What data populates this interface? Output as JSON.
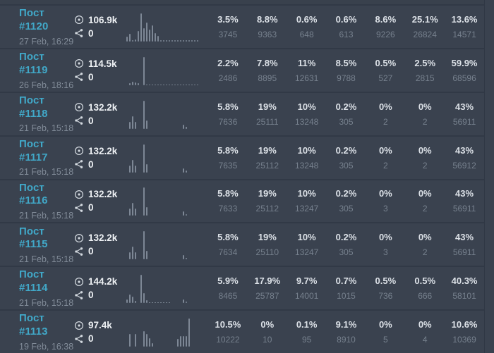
{
  "colors": {
    "background": "#3a424f",
    "divider": "#313946",
    "post_link": "#41a8c8",
    "primary_text": "#eef1f4",
    "muted_text": "#828c99",
    "stat_value_text": "#76808d",
    "spark_bar": "#7d8795"
  },
  "icons": {
    "views": "eye-icon",
    "shares": "share-icon"
  },
  "rows": [
    {
      "title": "Пост #1120",
      "date": "27 Feb, 16:29",
      "views": "106.9k",
      "shares": "0",
      "spark": [
        18,
        28,
        5,
        8,
        38,
        100,
        48,
        68,
        42,
        58,
        30,
        20,
        5,
        5,
        5,
        5,
        5,
        5,
        5,
        5,
        5,
        5,
        5,
        5,
        5,
        5
      ],
      "stats": [
        {
          "pct": "3.5%",
          "val": "3745"
        },
        {
          "pct": "8.8%",
          "val": "9363"
        },
        {
          "pct": "0.6%",
          "val": "648"
        },
        {
          "pct": "0.6%",
          "val": "613"
        },
        {
          "pct": "8.6%",
          "val": "9226"
        },
        {
          "pct": "25.1%",
          "val": "26824"
        },
        {
          "pct": "13.6%",
          "val": "14571"
        }
      ]
    },
    {
      "title": "Пост #1119",
      "date": "26 Feb, 18:16",
      "views": "114.5k",
      "shares": "0",
      "spark": [
        0,
        8,
        12,
        10,
        8,
        0,
        100,
        3,
        3,
        3,
        3,
        3,
        3,
        3,
        3,
        3,
        3,
        3,
        3,
        3,
        3,
        3,
        3,
        3,
        3,
        3
      ],
      "stats": [
        {
          "pct": "2.2%",
          "val": "2486"
        },
        {
          "pct": "7.8%",
          "val": "8895"
        },
        {
          "pct": "11%",
          "val": "12631"
        },
        {
          "pct": "8.5%",
          "val": "9788"
        },
        {
          "pct": "0.5%",
          "val": "527"
        },
        {
          "pct": "2.5%",
          "val": "2815"
        },
        {
          "pct": "59.9%",
          "val": "68596"
        }
      ]
    },
    {
      "title": "Пост #1118",
      "date": "21 Feb, 15:18",
      "views": "132.2k",
      "shares": "0",
      "spark": [
        0,
        25,
        45,
        25,
        0,
        0,
        100,
        30,
        0,
        0,
        0,
        0,
        0,
        0,
        0,
        0,
        0,
        0,
        0,
        0,
        15,
        6,
        0,
        0,
        0,
        0
      ],
      "stats": [
        {
          "pct": "5.8%",
          "val": "7636"
        },
        {
          "pct": "19%",
          "val": "25111"
        },
        {
          "pct": "10%",
          "val": "13248"
        },
        {
          "pct": "0.2%",
          "val": "305"
        },
        {
          "pct": "0%",
          "val": "2"
        },
        {
          "pct": "0%",
          "val": "2"
        },
        {
          "pct": "43%",
          "val": "56911"
        }
      ]
    },
    {
      "title": "Пост #1117",
      "date": "21 Feb, 15:18",
      "views": "132.2k",
      "shares": "0",
      "spark": [
        0,
        25,
        45,
        25,
        0,
        0,
        100,
        30,
        0,
        0,
        0,
        0,
        0,
        0,
        0,
        0,
        0,
        0,
        0,
        0,
        15,
        6,
        0,
        0,
        0,
        0
      ],
      "stats": [
        {
          "pct": "5.8%",
          "val": "7635"
        },
        {
          "pct": "19%",
          "val": "25112"
        },
        {
          "pct": "10%",
          "val": "13248"
        },
        {
          "pct": "0.2%",
          "val": "305"
        },
        {
          "pct": "0%",
          "val": "2"
        },
        {
          "pct": "0%",
          "val": "2"
        },
        {
          "pct": "43%",
          "val": "56912"
        }
      ]
    },
    {
      "title": "Пост #1116",
      "date": "21 Feb, 15:18",
      "views": "132.2k",
      "shares": "0",
      "spark": [
        0,
        25,
        45,
        25,
        0,
        0,
        100,
        30,
        0,
        0,
        0,
        0,
        0,
        0,
        0,
        0,
        0,
        0,
        0,
        0,
        15,
        6,
        0,
        0,
        0,
        0
      ],
      "stats": [
        {
          "pct": "5.8%",
          "val": "7633"
        },
        {
          "pct": "19%",
          "val": "25112"
        },
        {
          "pct": "10%",
          "val": "13247"
        },
        {
          "pct": "0.2%",
          "val": "305"
        },
        {
          "pct": "0%",
          "val": "3"
        },
        {
          "pct": "0%",
          "val": "2"
        },
        {
          "pct": "43%",
          "val": "56911"
        }
      ]
    },
    {
      "title": "Пост #1115",
      "date": "21 Feb, 15:18",
      "views": "132.2k",
      "shares": "0",
      "spark": [
        0,
        25,
        45,
        25,
        0,
        0,
        100,
        30,
        0,
        0,
        0,
        0,
        0,
        0,
        0,
        0,
        0,
        0,
        0,
        0,
        15,
        6,
        0,
        0,
        0,
        0
      ],
      "stats": [
        {
          "pct": "5.8%",
          "val": "7634"
        },
        {
          "pct": "19%",
          "val": "25110"
        },
        {
          "pct": "10%",
          "val": "13247"
        },
        {
          "pct": "0.2%",
          "val": "305"
        },
        {
          "pct": "0%",
          "val": "3"
        },
        {
          "pct": "0%",
          "val": "2"
        },
        {
          "pct": "43%",
          "val": "56911"
        }
      ]
    },
    {
      "title": "Пост #1114",
      "date": "21 Feb, 15:18",
      "views": "144.2k",
      "shares": "0",
      "spark": [
        12,
        30,
        22,
        8,
        0,
        100,
        35,
        10,
        4,
        4,
        4,
        4,
        4,
        4,
        4,
        4,
        0,
        0,
        0,
        0,
        12,
        6,
        0,
        0,
        0,
        0
      ],
      "stats": [
        {
          "pct": "5.9%",
          "val": "8465"
        },
        {
          "pct": "17.9%",
          "val": "25787"
        },
        {
          "pct": "9.7%",
          "val": "14001"
        },
        {
          "pct": "0.7%",
          "val": "1015"
        },
        {
          "pct": "0.5%",
          "val": "736"
        },
        {
          "pct": "0.5%",
          "val": "666"
        },
        {
          "pct": "40.3%",
          "val": "58101"
        }
      ]
    },
    {
      "title": "Пост #1113",
      "date": "19 Feb, 16:38",
      "views": "97.4k",
      "shares": "0",
      "spark": [
        0,
        45,
        0,
        45,
        0,
        0,
        55,
        45,
        30,
        12,
        0,
        0,
        0,
        0,
        0,
        0,
        0,
        0,
        28,
        38,
        38,
        38,
        100
      ],
      "stats": [
        {
          "pct": "10.5%",
          "val": "10222"
        },
        {
          "pct": "0%",
          "val": "10"
        },
        {
          "pct": "0.1%",
          "val": "95"
        },
        {
          "pct": "9.1%",
          "val": "8910"
        },
        {
          "pct": "0%",
          "val": "5"
        },
        {
          "pct": "0%",
          "val": "4"
        },
        {
          "pct": "10.6%",
          "val": "10369"
        }
      ]
    }
  ]
}
